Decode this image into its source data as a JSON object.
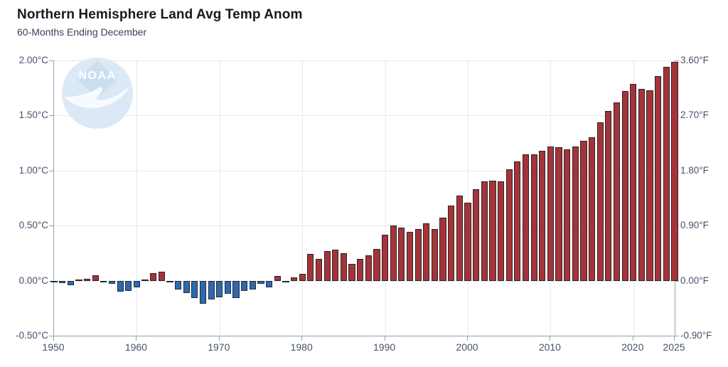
{
  "header": {
    "title": "Northern Hemisphere Land Avg Temp Anom",
    "subtitle": "60-Months Ending December"
  },
  "watermark": {
    "label": "NOAA"
  },
  "chart_data": {
    "type": "bar",
    "title": "Northern Hemisphere Land Avg Temp Anom",
    "subtitle": "60-Months Ending December",
    "unit_left": "°C",
    "unit_right": "°F",
    "xlim": [
      1950,
      2025
    ],
    "ylim_c": [
      -0.5,
      2.0
    ],
    "ylim_f": [
      -0.9,
      3.6
    ],
    "grid": true,
    "legend": false,
    "y_tick_values_c": [
      2.0,
      1.5,
      1.0,
      0.5,
      0.0,
      -0.5
    ],
    "y_tick_labels_c": [
      "2.00°C",
      "1.50°C",
      "1.00°C",
      "0.50°C",
      "0.00°C",
      "-0.50°C"
    ],
    "y_tick_labels_f": [
      "3.60°F",
      "2.70°F",
      "1.80°F",
      "0.90°F",
      "0.00°F",
      "-0.90°F"
    ],
    "x_ticks": [
      1950,
      1960,
      1970,
      1980,
      1990,
      2000,
      2010,
      2020,
      2025
    ],
    "years": [
      1950,
      1951,
      1952,
      1953,
      1954,
      1955,
      1956,
      1957,
      1958,
      1959,
      1960,
      1961,
      1962,
      1963,
      1964,
      1965,
      1966,
      1967,
      1968,
      1969,
      1970,
      1971,
      1972,
      1973,
      1974,
      1975,
      1976,
      1977,
      1978,
      1979,
      1980,
      1981,
      1982,
      1983,
      1984,
      1985,
      1986,
      1987,
      1988,
      1989,
      1990,
      1991,
      1992,
      1993,
      1994,
      1995,
      1996,
      1997,
      1998,
      1999,
      2000,
      2001,
      2002,
      2003,
      2004,
      2005,
      2006,
      2007,
      2008,
      2009,
      2010,
      2011,
      2012,
      2013,
      2014,
      2015,
      2016,
      2017,
      2018,
      2019,
      2020,
      2021,
      2022,
      2023,
      2024,
      2025
    ],
    "values": [
      -0.01,
      -0.02,
      -0.04,
      0.01,
      0.02,
      0.05,
      -0.01,
      -0.03,
      -0.1,
      -0.09,
      -0.06,
      0.01,
      0.07,
      0.08,
      -0.01,
      -0.08,
      -0.11,
      -0.16,
      -0.21,
      -0.17,
      -0.15,
      -0.12,
      -0.16,
      -0.09,
      -0.08,
      -0.03,
      -0.06,
      0.04,
      -0.01,
      0.03,
      0.06,
      0.24,
      0.2,
      0.27,
      0.28,
      0.25,
      0.15,
      0.2,
      0.23,
      0.29,
      0.42,
      0.5,
      0.48,
      0.44,
      0.47,
      0.52,
      0.47,
      0.57,
      0.68,
      0.77,
      0.71,
      0.83,
      0.9,
      0.91,
      0.9,
      1.01,
      1.08,
      1.15,
      1.15,
      1.18,
      1.22,
      1.21,
      1.19,
      1.22,
      1.27,
      1.3,
      1.44,
      1.54,
      1.62,
      1.72,
      1.79,
      1.74,
      1.73,
      1.86,
      1.94,
      1.99
    ],
    "colors": {
      "positive_fill": "#a4343a",
      "positive_border": "#302224",
      "negative_fill": "#3068ae",
      "negative_border": "#1e2d3d",
      "grid": "#e7e9eb",
      "axis": "#98a1ab",
      "tick_text": "#47536b",
      "title_text": "#17191e",
      "subtitle_text": "#35425b"
    }
  }
}
